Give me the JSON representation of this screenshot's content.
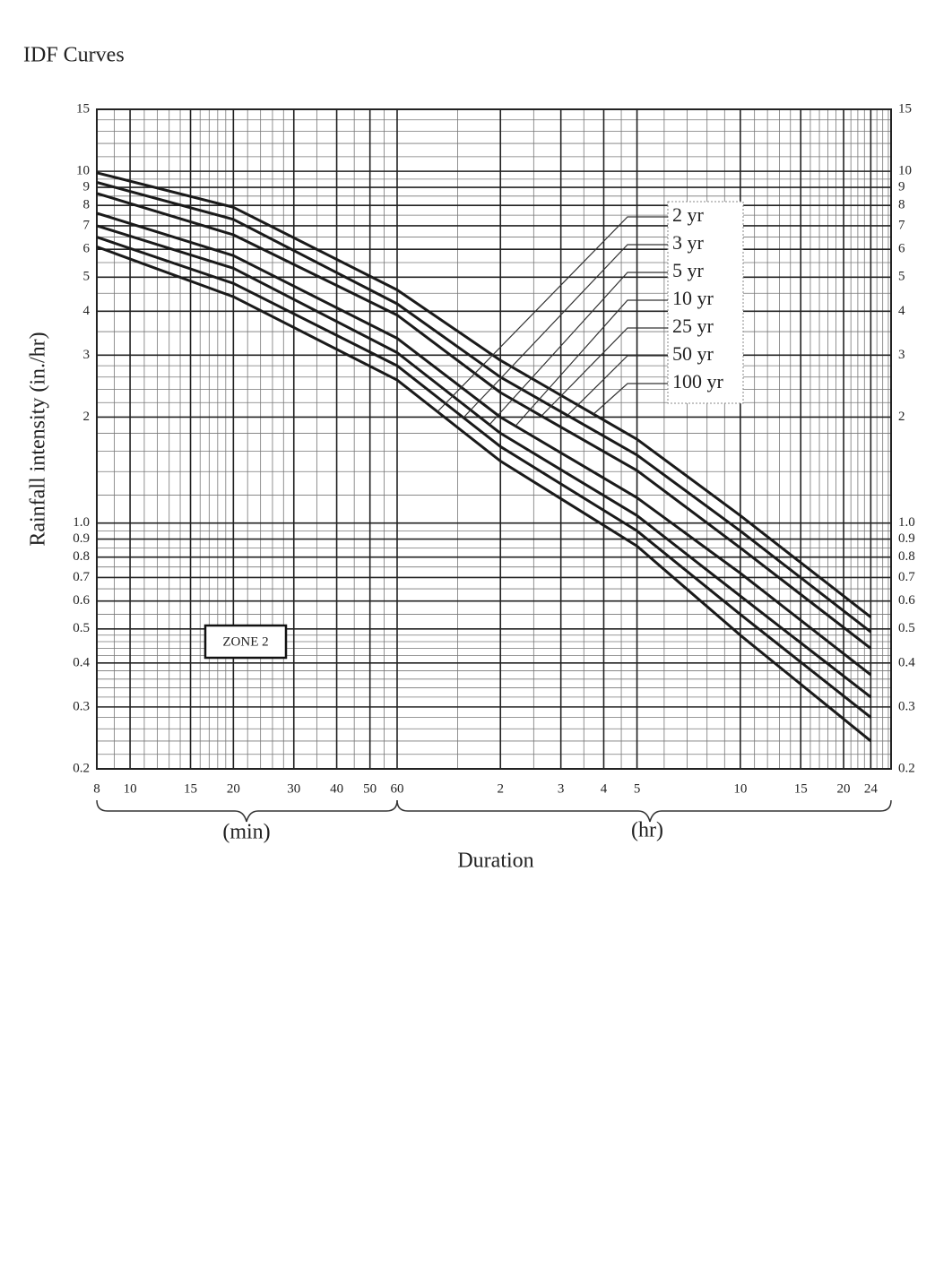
{
  "chart_data": {
    "type": "line",
    "title": "IDF Curves",
    "xlabel": "Duration",
    "ylabel": "Rainfall intensity (in./hr)",
    "annotations": {
      "zone": "ZONE 2",
      "min": "(min)",
      "hr": "(hr)"
    },
    "log_x": true,
    "log_y": true,
    "grid": true,
    "x": [
      8,
      20,
      60,
      120,
      300,
      600,
      1440
    ],
    "series": [
      {
        "name": "2 yr",
        "color": "#1a1a1a",
        "values": [
          6.1,
          4.4,
          2.55,
          1.5,
          0.86,
          0.48,
          0.24
        ]
      },
      {
        "name": "3 yr",
        "color": "#1a1a1a",
        "values": [
          6.5,
          4.8,
          2.8,
          1.65,
          0.95,
          0.55,
          0.28
        ]
      },
      {
        "name": "5 yr",
        "color": "#1a1a1a",
        "values": [
          7.0,
          5.3,
          3.05,
          1.8,
          1.05,
          0.62,
          0.32
        ]
      },
      {
        "name": "10 yr",
        "color": "#1a1a1a",
        "values": [
          7.6,
          5.76,
          3.35,
          2.0,
          1.18,
          0.72,
          0.37
        ]
      },
      {
        "name": "25 yr",
        "color": "#1a1a1a",
        "values": [
          8.65,
          6.6,
          3.9,
          2.35,
          1.41,
          0.85,
          0.44
        ]
      },
      {
        "name": "50 yr",
        "color": "#1a1a1a",
        "values": [
          9.3,
          7.3,
          4.2,
          2.6,
          1.56,
          0.95,
          0.49
        ]
      },
      {
        "name": "100 yr",
        "color": "#1a1a1a",
        "values": [
          9.9,
          7.9,
          4.6,
          2.9,
          1.73,
          1.05,
          0.54
        ]
      }
    ],
    "xlim": [
      8,
      1650
    ],
    "ylim": [
      0.2,
      15
    ],
    "xticks": [
      8,
      10,
      15,
      20,
      30,
      40,
      50,
      60,
      {
        "value": 120,
        "label": "2"
      },
      {
        "value": 180,
        "label": "3"
      },
      {
        "value": 240,
        "label": "4"
      },
      {
        "value": 300,
        "label": "5"
      },
      {
        "value": 600,
        "label": "10"
      },
      {
        "value": 900,
        "label": "15"
      },
      {
        "value": 1200,
        "label": "20"
      },
      {
        "value": 1440,
        "label": "24"
      }
    ],
    "yticks": [
      0.2,
      0.3,
      0.4,
      0.5,
      0.6,
      0.7,
      0.8,
      0.9,
      {
        "value": 1,
        "label": "1.0"
      },
      2,
      3,
      4,
      5,
      6,
      7,
      8,
      9,
      10,
      15
    ],
    "xminor": [
      9,
      11,
      12,
      13,
      14,
      16,
      17,
      18,
      19,
      22,
      24,
      26,
      28,
      35,
      45,
      55,
      90,
      150,
      210,
      270,
      360,
      420,
      480,
      540,
      660,
      720,
      780,
      840,
      960,
      1020,
      1080,
      1140,
      1260,
      1320,
      1380,
      1500,
      1560,
      1620
    ],
    "yminor": [
      0.22,
      0.24,
      0.26,
      0.28,
      0.32,
      0.34,
      0.36,
      0.38,
      0.42,
      0.44,
      0.46,
      0.48,
      0.55,
      0.65,
      0.75,
      0.85,
      0.95,
      1.2,
      1.4,
      1.6,
      1.8,
      2.2,
      2.4,
      2.6,
      2.8,
      3.5,
      4.5,
      5.5,
      6.5,
      7.5,
      8.5,
      9.5,
      11,
      12,
      13,
      14
    ]
  }
}
